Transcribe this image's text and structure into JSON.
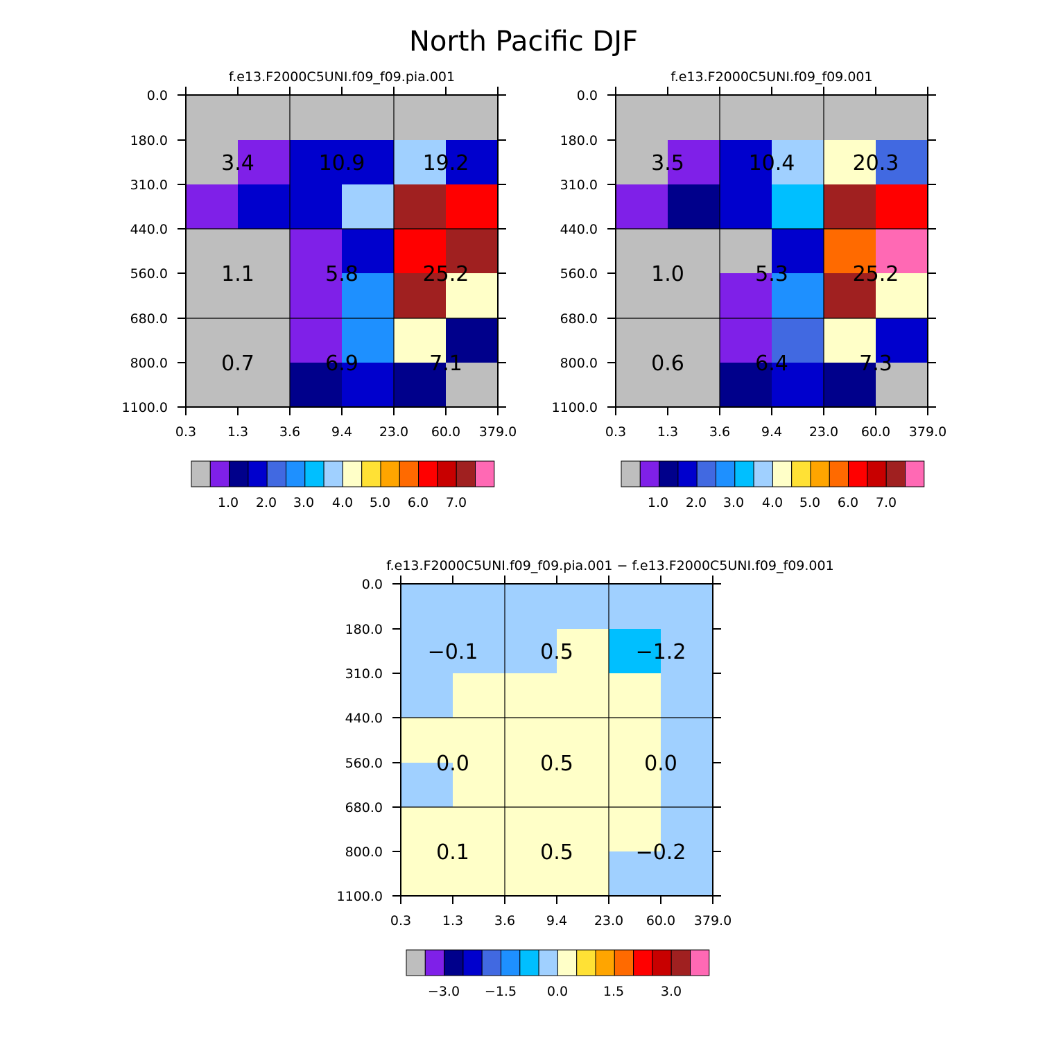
{
  "title": "North Pacific DJF",
  "colors": {
    "palette": [
      "#bebebe",
      "#7f20e8",
      "#00008b",
      "#0000cd",
      "#4169e1",
      "#1e90ff",
      "#00bfff",
      "#a0d0ff",
      "#ffffc8",
      "#ffe135",
      "#ffa500",
      "#ff6a00",
      "#ff0000",
      "#c80000",
      "#a02020",
      "#ff69b4"
    ],
    "grid": "#000000"
  },
  "chart_data": [
    {
      "type": "heatmap",
      "title": "f.e13.F2000C5UNI.f09_f09.pia.001",
      "x_ticks": [
        "0.3",
        "1.3",
        "3.6",
        "9.4",
        "23.0",
        "60.0",
        "379.0"
      ],
      "y_ticks": [
        "0.0",
        "180.0",
        "310.0",
        "440.0",
        "560.0",
        "680.0",
        "800.0",
        "1100.0"
      ],
      "cells": [
        [
          0,
          0,
          0,
          0,
          0,
          0
        ],
        [
          0,
          1,
          3,
          3,
          7,
          3
        ],
        [
          1,
          3,
          3,
          7,
          14,
          12
        ],
        [
          0,
          0,
          1,
          3,
          12,
          14
        ],
        [
          0,
          0,
          1,
          5,
          14,
          8
        ],
        [
          0,
          0,
          1,
          5,
          8,
          2
        ],
        [
          0,
          0,
          2,
          3,
          2,
          0
        ]
      ],
      "totals": [
        [
          "3.4",
          "10.9",
          "19.2"
        ],
        [
          "1.1",
          "5.8",
          "25.2"
        ],
        [
          "0.7",
          "6.9",
          "7.1"
        ]
      ],
      "colorbar": {
        "labels": [
          "1.0",
          "2.0",
          "3.0",
          "4.0",
          "5.0",
          "6.0",
          "7.0"
        ]
      }
    },
    {
      "type": "heatmap",
      "title": "f.e13.F2000C5UNI.f09_f09.001",
      "x_ticks": [
        "0.3",
        "1.3",
        "3.6",
        "9.4",
        "23.0",
        "60.0",
        "379.0"
      ],
      "y_ticks": [
        "0.0",
        "180.0",
        "310.0",
        "440.0",
        "560.0",
        "680.0",
        "800.0",
        "1100.0"
      ],
      "cells": [
        [
          0,
          0,
          0,
          0,
          0,
          0
        ],
        [
          0,
          1,
          3,
          7,
          8,
          4
        ],
        [
          1,
          2,
          3,
          6,
          14,
          12
        ],
        [
          0,
          0,
          0,
          3,
          11,
          15
        ],
        [
          0,
          0,
          1,
          5,
          14,
          8
        ],
        [
          0,
          0,
          1,
          4,
          8,
          3
        ],
        [
          0,
          0,
          2,
          3,
          2,
          0
        ]
      ],
      "totals": [
        [
          "3.5",
          "10.4",
          "20.3"
        ],
        [
          "1.0",
          "5.3",
          "25.2"
        ],
        [
          "0.6",
          "6.4",
          "7.3"
        ]
      ],
      "colorbar": {
        "labels": [
          "1.0",
          "2.0",
          "3.0",
          "4.0",
          "5.0",
          "6.0",
          "7.0"
        ]
      }
    },
    {
      "type": "heatmap",
      "title": "f.e13.F2000C5UNI.f09_f09.pia.001 − f.e13.F2000C5UNI.f09_f09.001",
      "x_ticks": [
        "0.3",
        "1.3",
        "3.6",
        "9.4",
        "23.0",
        "60.0",
        "379.0"
      ],
      "y_ticks": [
        "0.0",
        "180.0",
        "310.0",
        "440.0",
        "560.0",
        "680.0",
        "800.0",
        "1100.0"
      ],
      "cells": [
        [
          7,
          7,
          7,
          7,
          7,
          7
        ],
        [
          7,
          7,
          7,
          8,
          6,
          7
        ],
        [
          7,
          8,
          8,
          8,
          8,
          7
        ],
        [
          8,
          8,
          8,
          8,
          8,
          7
        ],
        [
          7,
          8,
          8,
          8,
          8,
          7
        ],
        [
          8,
          8,
          8,
          8,
          8,
          7
        ],
        [
          8,
          8,
          8,
          8,
          7,
          7
        ]
      ],
      "totals": [
        [
          "−0.1",
          "0.5",
          "−1.2"
        ],
        [
          "0.0",
          "0.5",
          "0.0"
        ],
        [
          "0.1",
          "0.5",
          "−0.2"
        ]
      ],
      "colorbar": {
        "labels": [
          "−3.0",
          "−1.5",
          "0.0",
          "1.5",
          "3.0"
        ]
      }
    }
  ]
}
